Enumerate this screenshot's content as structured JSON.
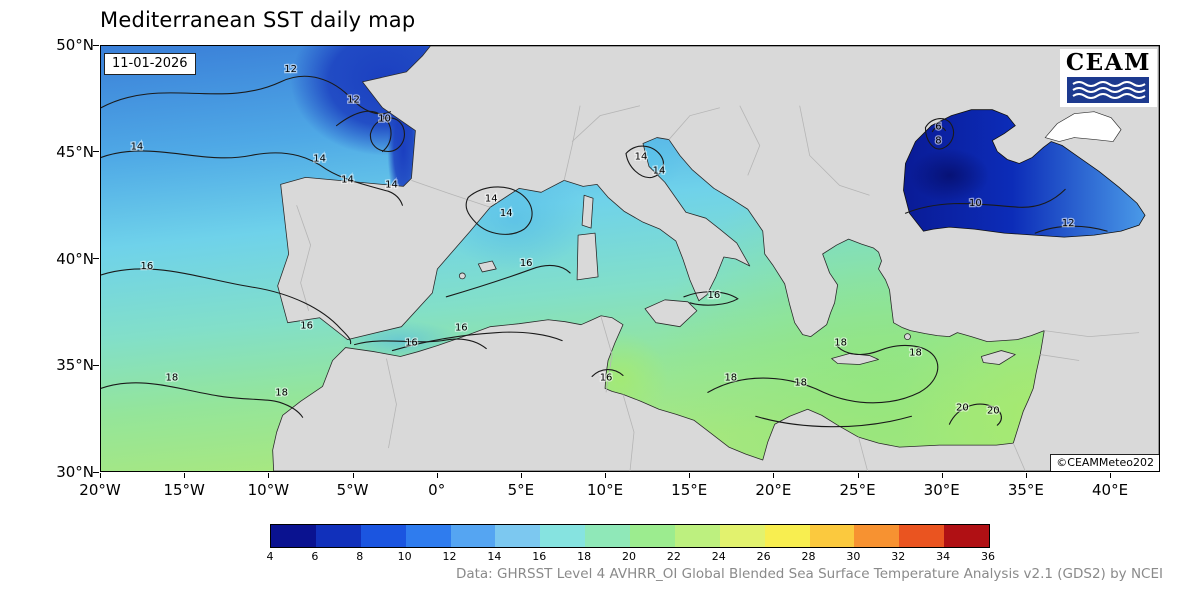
{
  "title": "Mediterranean SST daily map",
  "date_label": "11-01-2026",
  "logo": {
    "text": "CEAM"
  },
  "copyright": "©CEAMMeteo202",
  "attribution": "Data: GHRSST Level 4 AVHRR_OI Global Blended Sea Surface Temperature Analysis v2.1 (GDS2) by NCEI",
  "axes": {
    "y_ticks": [
      "50°N",
      "45°N",
      "40°N",
      "35°N",
      "30°N"
    ],
    "x_ticks": [
      "20°W",
      "15°W",
      "10°W",
      "5°W",
      "0°",
      "5°E",
      "10°E",
      "15°E",
      "20°E",
      "25°E",
      "30°E",
      "35°E",
      "40°E"
    ]
  },
  "colorbar": {
    "ticks": [
      "4",
      "6",
      "8",
      "10",
      "12",
      "14",
      "16",
      "18",
      "20",
      "22",
      "24",
      "26",
      "28",
      "30",
      "32",
      "34",
      "36"
    ],
    "colors": [
      "#0a1290",
      "#1130bb",
      "#1b55e0",
      "#2f7cee",
      "#55a5f2",
      "#7cc8f0",
      "#86e3e0",
      "#8fe8b8",
      "#9cec8f",
      "#bdf07f",
      "#e2f26e",
      "#f8ee50",
      "#fbc93e",
      "#f79231",
      "#ea5420",
      "#b01014"
    ]
  },
  "map": {
    "land_color": "#d9d9d9",
    "sea_colors": {
      "atlantic_north_blue": "#3a7fd8",
      "channel_deep_blue": "#1b3fc0",
      "western_med_cyan": "#6fd2ea",
      "eastern_med_green": "#97e694",
      "black_sea_dark_blue": "#0a1b96"
    },
    "contour_labels": [
      "12",
      "12",
      "10",
      "14",
      "14",
      "14",
      "14",
      "16",
      "16",
      "18",
      "18",
      "14",
      "14",
      "16",
      "16",
      "16",
      "14",
      "14",
      "16",
      "16",
      "18",
      "18",
      "18",
      "18",
      "20",
      "20",
      "6",
      "8",
      "10",
      "12"
    ]
  }
}
